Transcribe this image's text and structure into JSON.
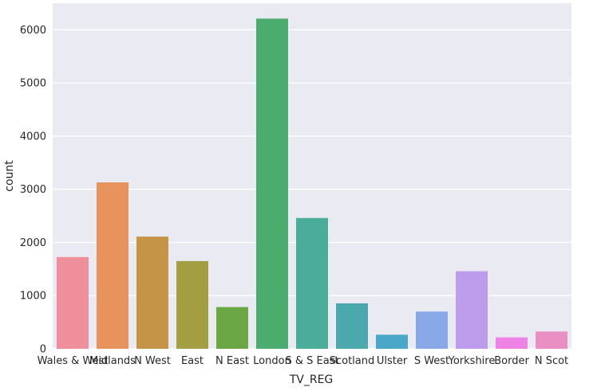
{
  "chart_data": {
    "type": "bar",
    "title": "",
    "xlabel": "TV_REG",
    "ylabel": "count",
    "categories": [
      "Wales & West",
      "Midlands",
      "N West",
      "East",
      "N East",
      "London",
      "S & S East",
      "Scotland",
      "Ulster",
      "S West",
      "Yorkshire",
      "Border",
      "N Scot"
    ],
    "values": [
      1725,
      3130,
      2110,
      1650,
      785,
      6210,
      2460,
      855,
      265,
      700,
      1460,
      215,
      325
    ],
    "colors": [
      "#ef8f9b",
      "#e8925e",
      "#c69446",
      "#a49e43",
      "#6ca746",
      "#4aad6e",
      "#4aad9a",
      "#4ba9ad",
      "#4aa7c8",
      "#88a8e7",
      "#bd9deb",
      "#ee82e5",
      "#ea8fc4"
    ],
    "ylim": [
      0,
      6500
    ],
    "yticks": [
      0,
      1000,
      2000,
      3000,
      4000,
      5000,
      6000
    ],
    "grid": true,
    "background": "#eaeaf2"
  }
}
